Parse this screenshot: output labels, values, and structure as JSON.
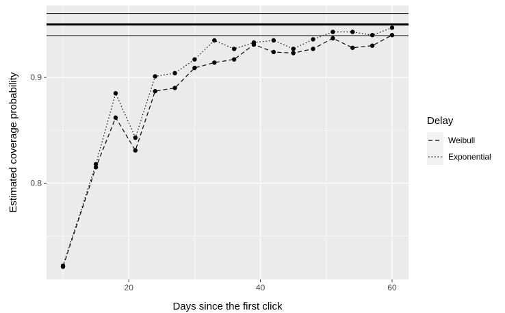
{
  "chart_data": {
    "type": "line",
    "title": "",
    "xlabel": "Days since the first click",
    "ylabel": "Estimated coverage probability",
    "xlim": [
      7.5,
      62.5
    ],
    "ylim": [
      0.709,
      0.968
    ],
    "x_ticks": [
      20,
      40,
      60
    ],
    "y_ticks": [
      0.8,
      0.9
    ],
    "x_tick_labels": [
      "20",
      "40",
      "60"
    ],
    "y_tick_labels": [
      "0.8",
      "0.9"
    ],
    "grid": true,
    "legend": {
      "title": "Delay",
      "placement": "right"
    },
    "reference_lines": [
      {
        "y": 0.95,
        "style": "thick"
      },
      {
        "y": 0.9605,
        "style": "thin"
      },
      {
        "y": 0.9395,
        "style": "thin"
      }
    ],
    "x": [
      10,
      15,
      18,
      21,
      24,
      27,
      30,
      33,
      36,
      39,
      42,
      45,
      48,
      51,
      54,
      57,
      60
    ],
    "series": [
      {
        "name": "Weibull",
        "line": "dashed",
        "values": [
          0.721,
          0.815,
          0.862,
          0.831,
          0.887,
          0.89,
          0.909,
          0.914,
          0.917,
          0.931,
          0.924,
          0.923,
          0.927,
          0.937,
          0.928,
          0.93,
          0.94
        ]
      },
      {
        "name": "Exponential",
        "line": "dotted",
        "values": [
          0.722,
          0.818,
          0.885,
          0.843,
          0.901,
          0.904,
          0.917,
          0.935,
          0.927,
          0.933,
          0.935,
          0.927,
          0.936,
          0.943,
          0.943,
          0.94,
          0.947
        ]
      }
    ]
  }
}
